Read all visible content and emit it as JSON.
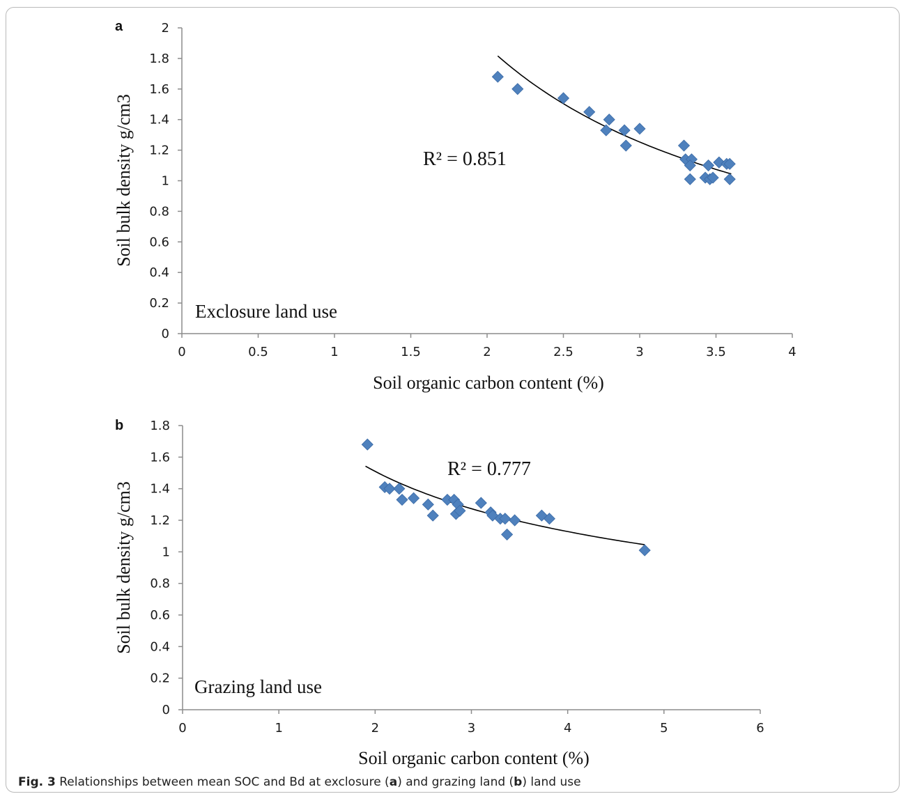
{
  "caption": {
    "label": "Fig. 3",
    "pre": " Relationships between mean SOC and Bd at exclosure (",
    "a": "a",
    "mid": ") and grazing land (",
    "b": "b",
    "post": ") land use"
  },
  "chart_data": [
    {
      "panel": "a",
      "type": "scatter",
      "xlabel": "Soil organic carbon content (%)",
      "ylabel": "Soil bulk density g/cm3",
      "xlim": [
        0,
        4
      ],
      "ylim": [
        0,
        2
      ],
      "xticks": [
        0,
        0.5,
        1,
        1.5,
        2,
        2.5,
        3,
        3.5,
        4
      ],
      "xtick_labels": [
        "0",
        "0.5",
        "1",
        "1.5",
        "2",
        "2.5",
        "3",
        "3.5",
        "4"
      ],
      "yticks": [
        0,
        0.2,
        0.4,
        0.6,
        0.8,
        1,
        1.2,
        1.4,
        1.6,
        1.8,
        2
      ],
      "ytick_labels": [
        "0",
        "0.2",
        "0.4",
        "0.6",
        "0.8",
        "1",
        "1.2",
        "1.4",
        "1.6",
        "1.8",
        "2"
      ],
      "annotation": "R² = 0.851",
      "land_use_label": "Exclosure land use",
      "marker_color": "#4f81bd",
      "points": [
        [
          2.07,
          1.68
        ],
        [
          2.2,
          1.6
        ],
        [
          2.5,
          1.54
        ],
        [
          2.67,
          1.45
        ],
        [
          2.8,
          1.4
        ],
        [
          2.78,
          1.33
        ],
        [
          2.9,
          1.33
        ],
        [
          2.91,
          1.23
        ],
        [
          3.0,
          1.34
        ],
        [
          3.29,
          1.23
        ],
        [
          3.3,
          1.14
        ],
        [
          3.34,
          1.14
        ],
        [
          3.33,
          1.1
        ],
        [
          3.33,
          1.01
        ],
        [
          3.43,
          1.02
        ],
        [
          3.45,
          1.1
        ],
        [
          3.46,
          1.01
        ],
        [
          3.48,
          1.02
        ],
        [
          3.52,
          1.12
        ],
        [
          3.57,
          1.11
        ],
        [
          3.59,
          1.11
        ],
        [
          3.59,
          1.01
        ]
      ],
      "trendline": {
        "form": "power",
        "a": 3.76,
        "b": -1.0,
        "x_range": [
          2.07,
          3.6
        ]
      }
    },
    {
      "panel": "b",
      "type": "scatter",
      "xlabel": "Soil organic carbon content (%)",
      "ylabel": "Soil bulk density g/cm3",
      "xlim": [
        0,
        6
      ],
      "ylim": [
        0,
        1.8
      ],
      "xticks": [
        0,
        1,
        2,
        3,
        4,
        5,
        6
      ],
      "xtick_labels": [
        "0",
        "1",
        "2",
        "3",
        "4",
        "5",
        "6"
      ],
      "yticks": [
        0,
        0.2,
        0.4,
        0.6,
        0.8,
        1,
        1.2,
        1.4,
        1.6,
        1.8
      ],
      "ytick_labels": [
        "0",
        "0.2",
        "0.4",
        "0.6",
        "0.8",
        "1",
        "1.2",
        "1.4",
        "1.6",
        "1.8"
      ],
      "annotation": "R² = 0.777",
      "land_use_label": "Grazing land use",
      "marker_color": "#4f81bd",
      "points": [
        [
          1.92,
          1.68
        ],
        [
          2.1,
          1.41
        ],
        [
          2.15,
          1.4
        ],
        [
          2.25,
          1.4
        ],
        [
          2.28,
          1.33
        ],
        [
          2.4,
          1.34
        ],
        [
          2.55,
          1.3
        ],
        [
          2.6,
          1.23
        ],
        [
          2.75,
          1.33
        ],
        [
          2.82,
          1.33
        ],
        [
          2.84,
          1.24
        ],
        [
          2.86,
          1.3
        ],
        [
          2.88,
          1.26
        ],
        [
          3.1,
          1.31
        ],
        [
          3.2,
          1.25
        ],
        [
          3.22,
          1.23
        ],
        [
          3.3,
          1.21
        ],
        [
          3.35,
          1.21
        ],
        [
          3.37,
          1.11
        ],
        [
          3.45,
          1.2
        ],
        [
          3.73,
          1.23
        ],
        [
          3.81,
          1.21
        ],
        [
          4.8,
          1.01
        ]
      ],
      "trendline": {
        "form": "power",
        "a": 2.02,
        "b": -0.42,
        "x_range": [
          1.9,
          4.8
        ]
      }
    }
  ]
}
